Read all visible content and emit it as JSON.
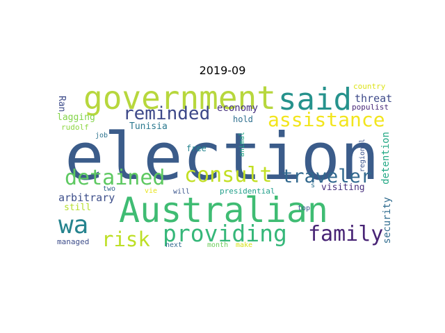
{
  "title": "2019-09",
  "words": [
    {
      "text": "election",
      "color": "#3b5c8a"
    },
    {
      "text": "Australian",
      "color": "#3fbc73"
    },
    {
      "text": "government",
      "color": "#b7d73d"
    },
    {
      "text": "said",
      "color": "#26928c"
    },
    {
      "text": "assistance",
      "color": "#f2e51d"
    },
    {
      "text": "consult",
      "color": "#c2df23"
    },
    {
      "text": "detained",
      "color": "#5ec962"
    },
    {
      "text": "reminded",
      "color": "#3e4989"
    },
    {
      "text": "traveler",
      "color": "#31688e"
    },
    {
      "text": "providing",
      "color": "#35b779"
    },
    {
      "text": "family",
      "color": "#482475"
    },
    {
      "text": "wa",
      "color": "#25838e"
    },
    {
      "text": "risk",
      "color": "#bddf26"
    },
    {
      "text": "economy",
      "color": "#46317e"
    },
    {
      "text": "Tunisia",
      "color": "#2a788e"
    },
    {
      "text": "hold",
      "color": "#2e6f8e"
    },
    {
      "text": "threat",
      "color": "#3e4a89"
    },
    {
      "text": "populist",
      "color": "#482878"
    },
    {
      "text": "country",
      "color": "#dde318"
    },
    {
      "text": "Ran",
      "color": "#3e4c8a"
    },
    {
      "text": "lagging",
      "color": "#84d44b"
    },
    {
      "text": "rudolf",
      "color": "#8fd744"
    },
    {
      "text": "job",
      "color": "#2c728e"
    },
    {
      "text": "free",
      "color": "#25848e"
    },
    {
      "text": "animal",
      "color": "#21a685"
    },
    {
      "text": "regional",
      "color": "#3a548c"
    },
    {
      "text": "detention",
      "color": "#22a884"
    },
    {
      "text": "security",
      "color": "#2f6b8e"
    },
    {
      "text": "arbitrary",
      "color": "#3d4e8a"
    },
    {
      "text": "visiting",
      "color": "#472f7d"
    },
    {
      "text": "still",
      "color": "#b5de2b"
    },
    {
      "text": "two",
      "color": "#33638d"
    },
    {
      "text": "vie",
      "color": "#e7e419"
    },
    {
      "text": "will",
      "color": "#3a548c"
    },
    {
      "text": "presidential",
      "color": "#1f9e89"
    },
    {
      "text": "s",
      "color": "#2d708e"
    },
    {
      "text": "top",
      "color": "#39558c"
    },
    {
      "text": "managed",
      "color": "#3d4d8a"
    },
    {
      "text": "next",
      "color": "#31688e"
    },
    {
      "text": "month",
      "color": "#6ccd5a"
    },
    {
      "text": "make",
      "color": "#d8e219"
    }
  ]
}
